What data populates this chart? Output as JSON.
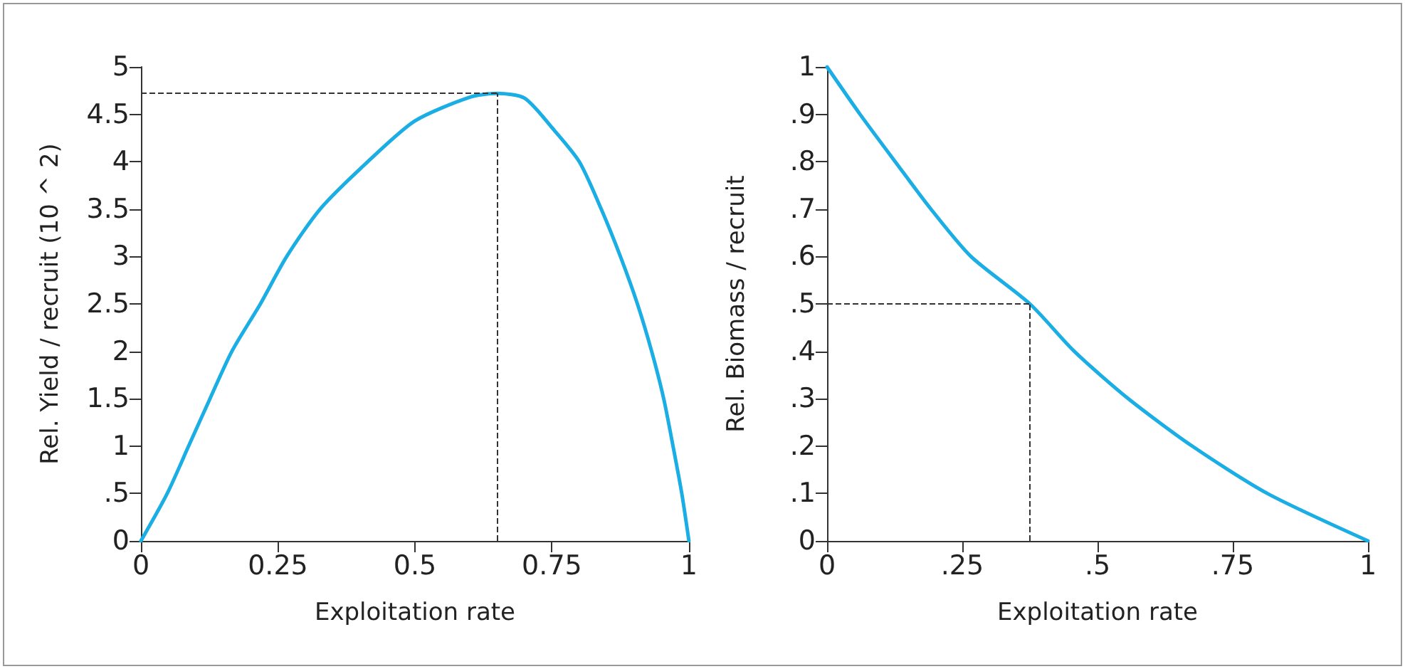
{
  "chart_data": [
    {
      "type": "line",
      "xlabel": "Exploitation rate",
      "ylabel": "Rel. Yield / recruit (10 ^ 2)",
      "series": [
        {
          "color": "#1aaee5",
          "x": [
            0,
            0.048,
            0.087,
            0.126,
            0.166,
            0.218,
            0.266,
            0.327,
            0.414,
            0.5,
            0.6,
            0.65,
            0.7,
            0.75,
            0.8,
            0.84,
            0.875,
            0.906,
            0.932,
            0.954,
            0.971,
            0.987,
            1
          ],
          "values": [
            0,
            0.5,
            1,
            1.5,
            2,
            2.5,
            3,
            3.5,
            4,
            4.43,
            4.68,
            4.72,
            4.67,
            4.36,
            4,
            3.5,
            3,
            2.5,
            2,
            1.5,
            1,
            0.5,
            0
          ]
        }
      ],
      "xlim": [
        0,
        1
      ],
      "xticks": [
        0,
        0.25,
        0.5,
        0.75,
        1
      ],
      "ylim": [
        0,
        5
      ],
      "yticks": [
        0,
        {
          "value": 0.5,
          "label": ".5"
        },
        1,
        1.5,
        2,
        2.5,
        3,
        3.5,
        4,
        4.5,
        5
      ],
      "ref_lines": [
        {
          "axis": "x",
          "value": 0.65,
          "color": "#333333",
          "line_style": "dashed"
        },
        {
          "axis": "y",
          "value": 4.72,
          "color": "#333333",
          "line_style": "dashed"
        }
      ],
      "grid": false,
      "marker": "none",
      "line_style": "solid"
    },
    {
      "type": "line",
      "xlabel": "Exploitation rate",
      "ylabel": "Rel. Biomass / recruit",
      "series": [
        {
          "color": "#1aaee5",
          "x": [
            0,
            0.061,
            0.126,
            0.192,
            0.266,
            0.375,
            0.457,
            0.557,
            0.675,
            0.814,
            1
          ],
          "values": [
            1,
            0.9,
            0.8,
            0.7,
            0.6,
            0.5,
            0.4,
            0.3,
            0.2,
            0.1,
            0
          ]
        }
      ],
      "xlim": [
        0,
        1
      ],
      "xticks": [
        0,
        {
          "value": 0.25,
          "label": ".25"
        },
        {
          "value": 0.5,
          "label": ".5"
        },
        {
          "value": 0.75,
          "label": ".75"
        },
        1
      ],
      "ylim": [
        0,
        1
      ],
      "yticks": [
        0,
        {
          "value": 0.1,
          "label": ".1"
        },
        {
          "value": 0.2,
          "label": ".2"
        },
        {
          "value": 0.3,
          "label": ".3"
        },
        {
          "value": 0.4,
          "label": ".4"
        },
        {
          "value": 0.5,
          "label": ".5"
        },
        {
          "value": 0.6,
          "label": ".6"
        },
        {
          "value": 0.7,
          "label": ".7"
        },
        {
          "value": 0.8,
          "label": ".8"
        },
        {
          "value": 0.9,
          "label": ".9"
        },
        1
      ],
      "ref_lines": [
        {
          "axis": "x",
          "value": 0.375,
          "color": "#333333",
          "line_style": "dashed"
        },
        {
          "axis": "y",
          "value": 0.5,
          "color": "#333333",
          "line_style": "dashed"
        }
      ],
      "grid": false,
      "marker": "none",
      "line_style": "solid"
    }
  ]
}
